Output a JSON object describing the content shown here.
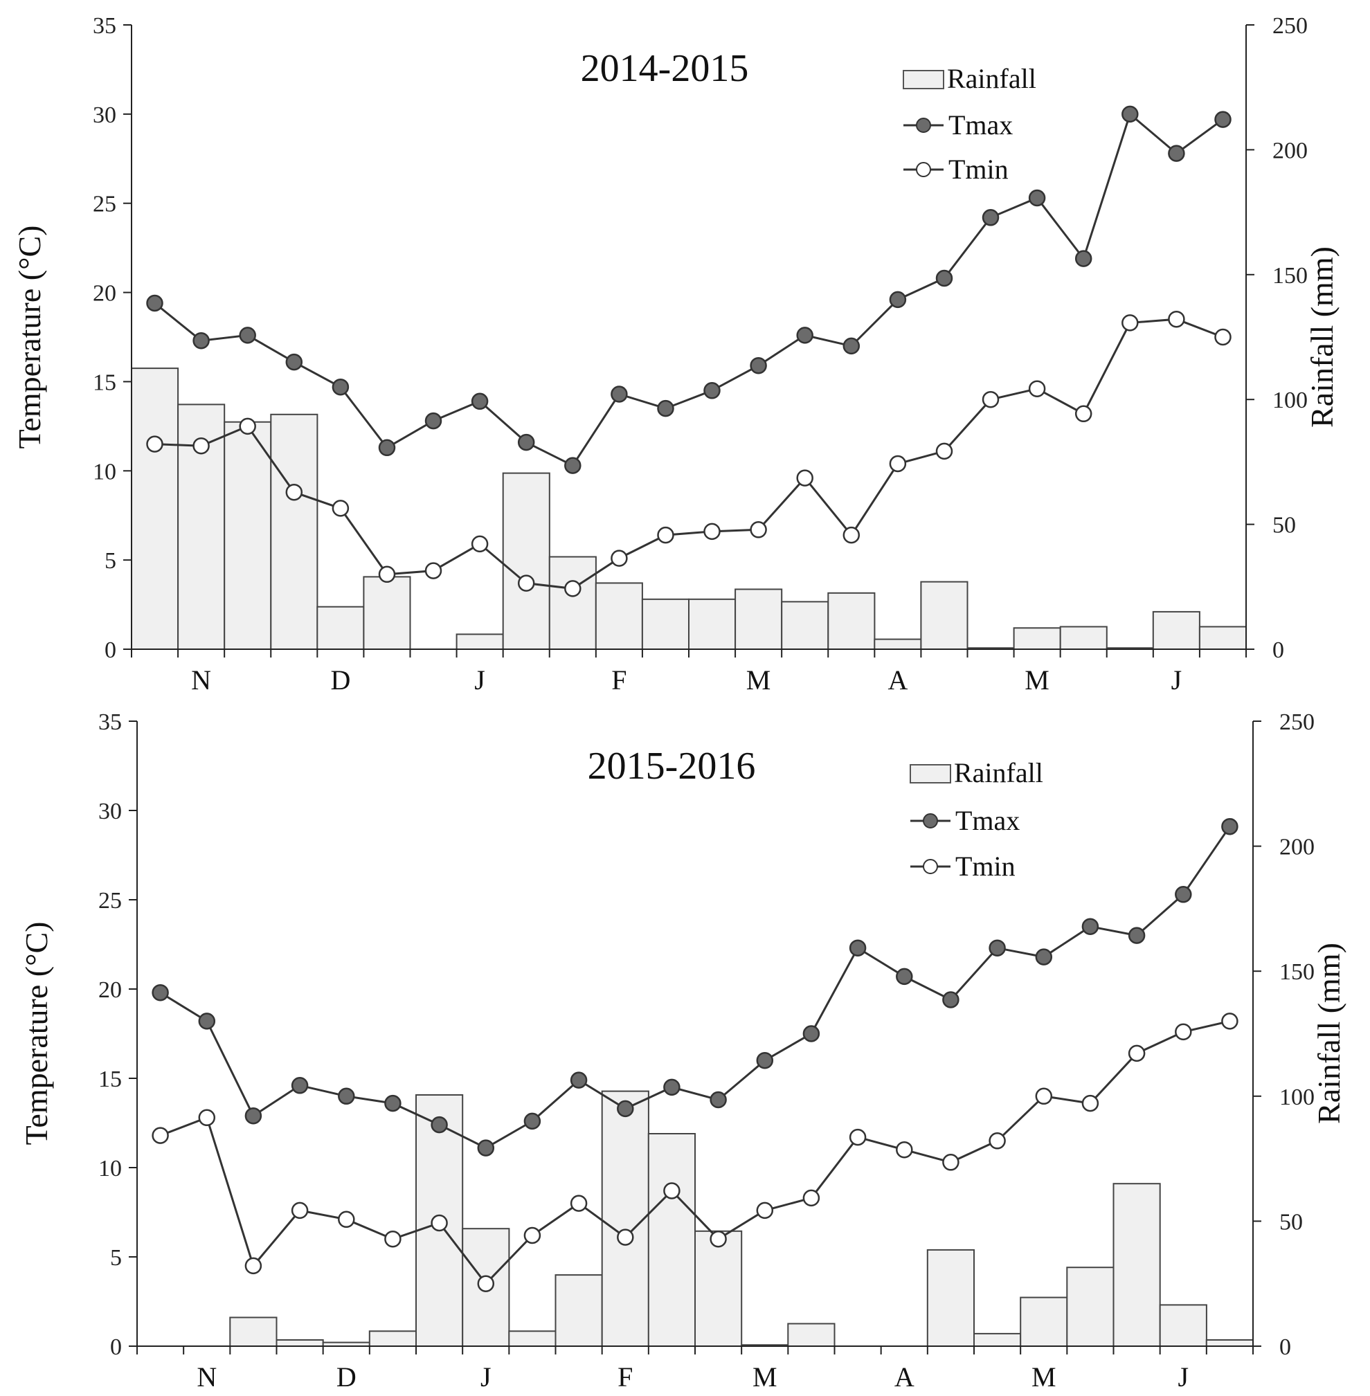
{
  "chart_data": [
    {
      "type": "bar+line",
      "title": "2014-2015",
      "ylabel_left": "Temperature (°C)",
      "ylabel_right": "Rainfall (mm)",
      "ylim_left": [
        0,
        35
      ],
      "yticks_left": [
        0,
        5,
        10,
        15,
        20,
        25,
        30,
        35
      ],
      "ylim_right": [
        0,
        250
      ],
      "yticks_right": [
        0,
        50,
        100,
        150,
        200,
        250
      ],
      "month_labels": [
        "N",
        "D",
        "J",
        "F",
        "M",
        "A",
        "M",
        "J"
      ],
      "legend": [
        "Rainfall",
        "Tmax",
        "Tmin"
      ],
      "rainfall": [
        112.5,
        98,
        91,
        94,
        17,
        29,
        0,
        6,
        70.5,
        37,
        26.5,
        20,
        20,
        24,
        19,
        22.5,
        4,
        27,
        0.5,
        8.5,
        9,
        0.5,
        15,
        9
      ],
      "tmax": [
        19.4,
        17.3,
        17.6,
        16.1,
        14.7,
        11.3,
        12.8,
        13.9,
        11.6,
        10.3,
        14.3,
        13.5,
        14.5,
        15.9,
        17.6,
        17.0,
        19.6,
        20.8,
        24.2,
        25.3,
        21.9,
        30.0,
        27.8,
        29.7
      ],
      "tmin": [
        11.5,
        11.4,
        12.5,
        8.8,
        7.9,
        4.2,
        4.4,
        5.9,
        3.7,
        3.4,
        5.1,
        6.4,
        6.6,
        6.7,
        9.6,
        6.4,
        10.4,
        11.1,
        14.0,
        14.6,
        13.2,
        18.3,
        18.5,
        17.5
      ]
    },
    {
      "type": "bar+line",
      "title": "2015-2016",
      "ylabel_left": "Temperature (°C)",
      "ylabel_right": "Rainfall (mm)",
      "ylim_left": [
        0,
        35
      ],
      "yticks_left": [
        0,
        5,
        10,
        15,
        20,
        25,
        30,
        35
      ],
      "ylim_right": [
        0,
        250
      ],
      "yticks_right": [
        0,
        50,
        100,
        150,
        200,
        250
      ],
      "month_labels": [
        "N",
        "D",
        "J",
        "F",
        "M",
        "A",
        "M",
        "J"
      ],
      "legend": [
        "Rainfall",
        "Tmax",
        "Tmin"
      ],
      "rainfall": [
        0,
        0,
        11.5,
        2.5,
        1.5,
        6,
        100.5,
        47,
        6,
        28.5,
        102,
        85,
        46,
        0.5,
        9,
        0,
        0,
        38.5,
        5,
        19.5,
        31.5,
        65,
        16.5,
        2.5
      ],
      "tmax": [
        19.8,
        18.2,
        12.9,
        14.6,
        14.0,
        13.6,
        12.4,
        11.1,
        12.6,
        14.9,
        13.3,
        14.5,
        13.8,
        16.0,
        17.5,
        22.3,
        20.7,
        19.4,
        22.3,
        21.8,
        23.5,
        23.0,
        25.3,
        29.1
      ],
      "tmin": [
        11.8,
        12.8,
        4.5,
        7.6,
        7.1,
        6.0,
        6.9,
        3.5,
        6.2,
        8.0,
        6.1,
        8.7,
        6.0,
        7.6,
        8.3,
        11.7,
        11.0,
        10.3,
        11.5,
        14.0,
        13.6,
        16.4,
        17.6,
        18.2
      ]
    }
  ]
}
